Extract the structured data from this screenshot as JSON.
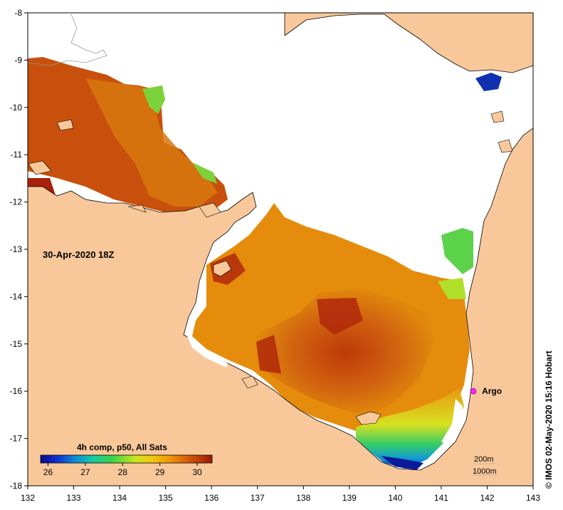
{
  "map": {
    "timestamp_label": "30-Apr-2020 18Z",
    "argo_label": "Argo",
    "credit": "© IMOS 02-May-2020 15:16 Hobart",
    "x_ticks": [
      132,
      133,
      134,
      135,
      136,
      137,
      138,
      139,
      140,
      141,
      142,
      143
    ],
    "y_ticks": [
      -8,
      -9,
      -10,
      -11,
      -12,
      -13,
      -14,
      -15,
      -16,
      -17,
      -18
    ],
    "argo_position": {
      "lon": 141.7,
      "lat": -16.0
    },
    "legend": {
      "title": "4h comp, p50, All Sats",
      "ticks": [
        26,
        27,
        28,
        29,
        30
      ],
      "range": [
        25.8,
        30.4
      ]
    },
    "contour_labels": {
      "depth_200": "200m",
      "depth_1000": "1000m"
    },
    "colors": {
      "land": "#f9c89a",
      "cloud": "#ffffff",
      "argo": "#ff33ff"
    }
  }
}
